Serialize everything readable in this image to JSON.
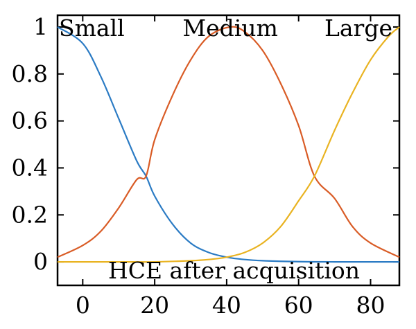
{
  "chart_data": {
    "type": "line",
    "title": "",
    "xlabel": "HCE after acquisition",
    "ylabel": "",
    "xlim": [
      -7,
      88
    ],
    "ylim": [
      -0.1,
      1.05
    ],
    "xticks": [
      0,
      20,
      40,
      60,
      80
    ],
    "xtick_labels": [
      "0",
      "20",
      "40",
      "60",
      "80"
    ],
    "yticks": [
      0,
      0.2,
      0.4,
      0.6,
      0.8,
      1
    ],
    "ytick_labels": [
      "0",
      "0.2",
      "0.4",
      "0.6",
      "0.8",
      "1"
    ],
    "grid": false,
    "legend": "none",
    "series": [
      {
        "name": "Small",
        "color": "#2b7bc4",
        "x": [
          -7,
          0,
          5,
          10,
          15,
          17.6,
          20,
          25,
          30,
          35,
          40,
          45,
          50,
          60,
          70,
          88
        ],
        "y": [
          1.0,
          0.93,
          0.79,
          0.61,
          0.43,
          0.365,
          0.28,
          0.16,
          0.08,
          0.04,
          0.02,
          0.01,
          0.005,
          0.001,
          0.0,
          0.0
        ]
      },
      {
        "name": "Medium",
        "color": "#d95c26",
        "x": [
          -7,
          0,
          5,
          10,
          15,
          17.6,
          20,
          25,
          30,
          35,
          41,
          45,
          50,
          55,
          60,
          64.4,
          70,
          75,
          80,
          88
        ],
        "y": [
          0.02,
          0.07,
          0.13,
          0.23,
          0.35,
          0.365,
          0.52,
          0.71,
          0.86,
          0.96,
          1.0,
          0.98,
          0.9,
          0.76,
          0.58,
          0.365,
          0.27,
          0.15,
          0.08,
          0.02
        ]
      },
      {
        "name": "Large",
        "color": "#e9b321",
        "x": [
          -7,
          10,
          20,
          30,
          35,
          40,
          45,
          50,
          55,
          60,
          64.4,
          70,
          75,
          80,
          85,
          88
        ],
        "y": [
          0.0,
          0.0,
          0.0,
          0.005,
          0.01,
          0.02,
          0.04,
          0.08,
          0.15,
          0.26,
          0.365,
          0.56,
          0.72,
          0.86,
          0.96,
          1.0
        ]
      }
    ]
  }
}
